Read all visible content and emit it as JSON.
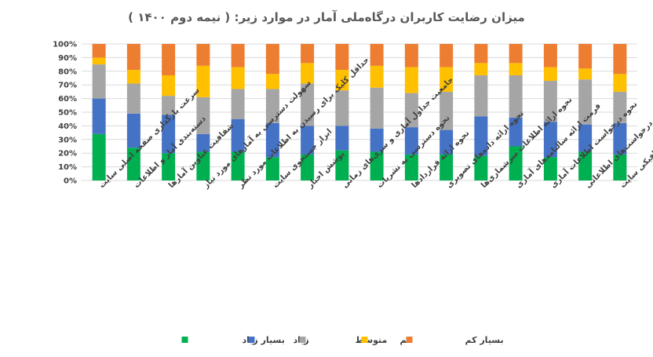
{
  "chart_data": {
    "type": "bar",
    "stacked": true,
    "title": "میزان رضایت کاربران درگاه‌ملی آمار در موارد زیر: ( نیمه دوم ۱۴۰۰ )",
    "xlabel": "",
    "ylabel": "",
    "ylim": [
      0,
      100
    ],
    "yticks": [
      "0%",
      "10%",
      "20%",
      "30%",
      "40%",
      "50%",
      "60%",
      "70%",
      "80%",
      "90%",
      "100%"
    ],
    "grid": true,
    "legend_position": "bottom",
    "categories": [
      [
        "سرعت بارگذاری صفحه اصلی سایت"
      ],
      [
        "دسته‌بندی آمار و اطلاعات"
      ],
      [
        "شفافیت عناوین آمارها"
      ],
      [
        "سهولت دسترسی به آمارهای مورد نیاز"
      ],
      [
        "حداقل کلیک برای رسیدن به اطلاعات مورد نظر"
      ],
      [
        "ابزار جستجوی سایت"
      ],
      [
        "پوشش اخبار"
      ],
      [
        "جامعیت جداول آماری و سری‌های زمانی"
      ],
      [
        "نحوه دسترسی به نشریات"
      ],
      [
        "نحوه ارائه قراردادها"
      ],
      [
        "نحوه ارائه داده‌های تصویری"
      ],
      [
        "نحوه ارائه اطلاعات سرشماری‌ها"
      ],
      [
        "فرمت ارائه سالنامه‌های آماری"
      ],
      [
        "نحوه درخواست اطلاعات آماری"
      ],
      [
        "سرعت پاسخگویی به درخواست‌های اطلاعاتی"
      ],
      [
        "ساختار گرافیکی سایت"
      ]
    ],
    "series": [
      {
        "name": "بسیار زیاد",
        "color": "#00b050",
        "values": [
          34,
          24,
          20,
          21,
          21,
          17,
          19,
          22,
          21,
          19,
          19,
          18,
          25,
          17,
          21,
          19
        ]
      },
      {
        "name": "زیاد",
        "color": "#4472c4",
        "values": [
          26,
          25,
          28,
          13,
          24,
          25,
          21,
          18,
          17,
          20,
          18,
          29,
          21,
          26,
          20,
          23
        ]
      },
      {
        "name": "متوسط",
        "color": "#a5a5a5",
        "values": [
          25,
          22,
          14,
          27,
          22,
          25,
          31,
          26,
          30,
          25,
          28,
          30,
          31,
          30,
          33,
          23
        ]
      },
      {
        "name": "کم",
        "color": "#ffc000",
        "values": [
          5,
          10,
          15,
          23,
          16,
          11,
          15,
          15,
          16,
          19,
          18,
          9,
          9,
          10,
          8,
          13
        ]
      },
      {
        "name": "بسیار کم",
        "color": "#ed7d31",
        "values": [
          10,
          19,
          23,
          16,
          17,
          22,
          14,
          19,
          16,
          17,
          17,
          14,
          14,
          17,
          18,
          22
        ]
      }
    ]
  }
}
